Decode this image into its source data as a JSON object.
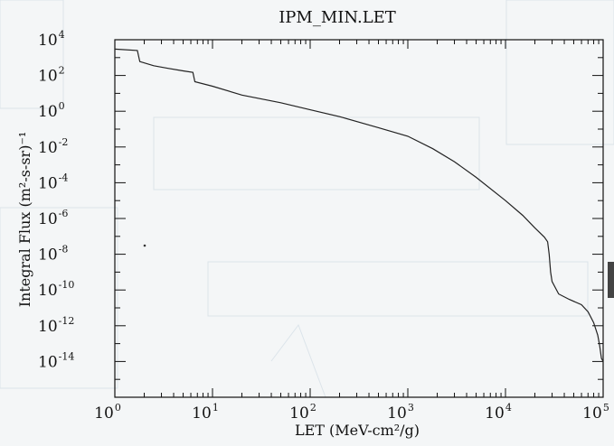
{
  "chart_data": {
    "type": "line",
    "title": "IPM_MIN.LET",
    "xlabel": "LET (MeV-cm²/g)",
    "ylabel": "Integral Flux (m²-s-sr)⁻¹",
    "x_scale": "log",
    "y_scale": "log",
    "xlim": [
      1,
      100000
    ],
    "ylim": [
      1e-16,
      10000
    ],
    "x_ticks": [
      {
        "base": "10",
        "exp": "0"
      },
      {
        "base": "10",
        "exp": "1"
      },
      {
        "base": "10",
        "exp": "2"
      },
      {
        "base": "10",
        "exp": "3"
      },
      {
        "base": "10",
        "exp": "4"
      },
      {
        "base": "10",
        "exp": "5"
      }
    ],
    "y_ticks": [
      {
        "base": "10",
        "exp": "4"
      },
      {
        "base": "10",
        "exp": "2"
      },
      {
        "base": "10",
        "exp": "0"
      },
      {
        "base": "10",
        "exp": "-2"
      },
      {
        "base": "10",
        "exp": "-4"
      },
      {
        "base": "10",
        "exp": "-6"
      },
      {
        "base": "10",
        "exp": "-8"
      },
      {
        "base": "10",
        "exp": "-10"
      },
      {
        "base": "10",
        "exp": "-12"
      },
      {
        "base": "10",
        "exp": "-14"
      }
    ],
    "grid": false,
    "series": [
      {
        "x": [
          1.0,
          1.7,
          1.8,
          2.5,
          3.5,
          5,
          6.3,
          6.6,
          10,
          20,
          50,
          100,
          200,
          500,
          1000,
          1800,
          3000,
          5000,
          10000,
          15000,
          20000,
          25000,
          27000,
          28000,
          29000,
          30000,
          35000,
          45000,
          60000,
          70000,
          80000,
          88000,
          92000,
          96000,
          100000
        ],
        "y": [
          3000,
          2500,
          600,
          350,
          250,
          180,
          150,
          45,
          25,
          8,
          3,
          1.2,
          0.5,
          0.12,
          0.04,
          0.008,
          0.0015,
          0.0002,
          1e-05,
          1.5e-06,
          3e-07,
          9e-08,
          5e-08,
          1e-08,
          1e-09,
          3e-10,
          6e-11,
          3e-11,
          1.5e-11,
          6e-12,
          1.5e-12,
          3e-13,
          8e-14,
          1.5e-14,
          1e-14
        ]
      }
    ]
  }
}
